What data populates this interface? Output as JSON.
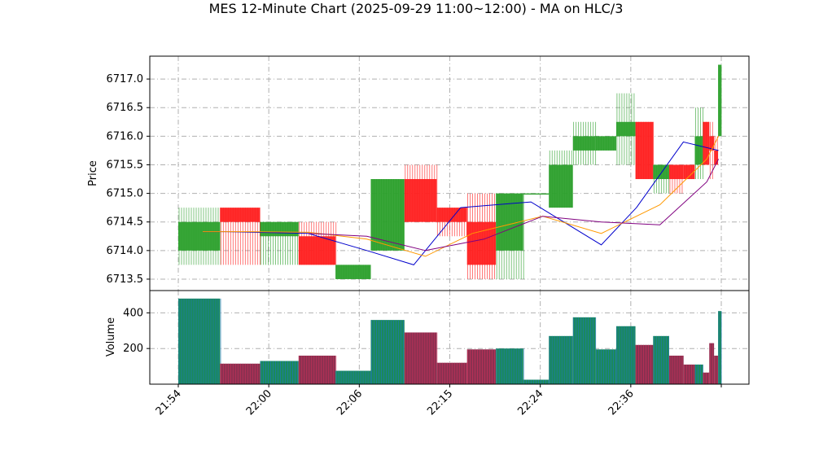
{
  "chart_data": {
    "type": "candlestick",
    "title": "MES 12-Minute Chart (2025-09-29 11:00~12:00) - MA on HLC/3",
    "price_panel": {
      "ylabel": "Price",
      "ylim": [
        6713.3,
        6717.4
      ],
      "yticks": [
        "6713.5",
        "6714.0",
        "6714.5",
        "6715.0",
        "6715.5",
        "6716.0",
        "6716.5",
        "6717.0"
      ],
      "grid": true
    },
    "volume_panel": {
      "ylabel": "Volume",
      "ylim": [
        0,
        525
      ],
      "yticks": [
        "200",
        "400"
      ],
      "grid": true
    },
    "xticks": [
      "21:54",
      "22:00",
      "22:06",
      "22:15",
      "22:24",
      "22:36",
      ""
    ],
    "bars": [
      {
        "open": 6714.0,
        "high": 6714.75,
        "low": 6713.75,
        "close": 6714.5,
        "volume": 480
      },
      {
        "open": 6714.75,
        "high": 6714.75,
        "low": 6713.75,
        "close": 6714.5,
        "volume": 115
      },
      {
        "open": 6714.25,
        "high": 6714.5,
        "low": 6713.75,
        "close": 6714.5,
        "volume": 130
      },
      {
        "open": 6714.25,
        "high": 6714.5,
        "low": 6713.75,
        "close": 6713.75,
        "volume": 160
      },
      {
        "open": 6713.5,
        "high": 6713.75,
        "low": 6713.5,
        "close": 6713.75,
        "volume": 75
      },
      {
        "open": 6714.0,
        "high": 6715.25,
        "low": 6714.0,
        "close": 6715.25,
        "volume": 360
      },
      {
        "open": 6715.25,
        "high": 6715.5,
        "low": 6714.5,
        "close": 6714.5,
        "volume": 290
      },
      {
        "open": 6714.75,
        "high": 6714.75,
        "low": 6714.25,
        "close": 6714.5,
        "volume": 120
      },
      {
        "open": 6714.5,
        "high": 6715.0,
        "low": 6713.5,
        "close": 6713.75,
        "volume": 195
      },
      {
        "open": 6714.0,
        "high": 6715.0,
        "low": 6713.5,
        "close": 6715.0,
        "volume": 200
      },
      {
        "open": 6715.0,
        "high": 6715.0,
        "low": 6715.0,
        "close": 6715.0,
        "volume": 25
      },
      {
        "open": 6714.75,
        "high": 6715.75,
        "low": 6714.75,
        "close": 6715.5,
        "volume": 270
      },
      {
        "open": 6715.75,
        "high": 6716.25,
        "low": 6715.5,
        "close": 6716.0,
        "volume": 375
      },
      {
        "open": 6715.75,
        "high": 6716.0,
        "low": 6715.75,
        "close": 6716.0,
        "volume": 195
      },
      {
        "open": 6716.0,
        "high": 6716.75,
        "low": 6715.5,
        "close": 6716.25,
        "volume": 325
      },
      {
        "open": 6716.25,
        "high": 6716.25,
        "low": 6715.25,
        "close": 6715.25,
        "volume": 220
      },
      {
        "open": 6715.25,
        "high": 6715.5,
        "low": 6715.0,
        "close": 6715.5,
        "volume": 270
      },
      {
        "open": 6715.5,
        "high": 6715.5,
        "low": 6715.0,
        "close": 6715.25,
        "volume": 160
      },
      {
        "open": 6715.5,
        "high": 6715.5,
        "low": 6715.25,
        "close": 6715.25,
        "volume": 110
      },
      {
        "open": 6715.5,
        "high": 6716.5,
        "low": 6715.25,
        "close": 6716.0,
        "volume": 110
      },
      {
        "open": 6716.25,
        "high": 6716.25,
        "low": 6715.5,
        "close": 6715.5,
        "volume": 65
      },
      {
        "open": 6716.0,
        "high": 6716.25,
        "low": 6715.25,
        "close": 6715.75,
        "volume": 230
      },
      {
        "open": 6715.75,
        "high": 6716.0,
        "low": 6715.5,
        "close": 6715.5,
        "volume": 160
      },
      {
        "open": 6716.0,
        "high": 6717.25,
        "low": 6716.0,
        "close": 6717.25,
        "volume": 410
      }
    ],
    "moving_averages": [
      {
        "color": "#0000cc",
        "x": [
          0.12,
          0.16,
          0.3,
          0.4,
          0.48,
          0.56,
          0.68,
          0.8,
          0.86,
          0.94,
          1.0
        ],
        "values": [
          6714.33,
          6714.33,
          6714.3,
          6714.0,
          6713.75,
          6714.75,
          6714.85,
          6714.1,
          6714.75,
          6715.9,
          6715.75
        ]
      },
      {
        "color": "#ff9900",
        "x": [
          0.12,
          0.2,
          0.3,
          0.4,
          0.5,
          0.58,
          0.7,
          0.8,
          0.9,
          0.98,
          1.0
        ],
        "values": [
          6714.33,
          6714.33,
          6714.32,
          6714.2,
          6713.9,
          6714.3,
          6714.6,
          6714.3,
          6714.8,
          6715.6,
          6716.0
        ]
      },
      {
        "color": "#800080",
        "x": [
          0.3,
          0.4,
          0.5,
          0.6,
          0.7,
          0.8,
          0.9,
          0.98,
          1.0
        ],
        "values": [
          6714.3,
          6714.25,
          6714.0,
          6714.2,
          6714.6,
          6714.5,
          6714.45,
          6715.2,
          6715.6
        ]
      }
    ],
    "colors": {
      "up": "#2ca02c",
      "down": "#ff2020",
      "vol_up_stripe": "#1f77b4",
      "vol_down_stripe": "#c8305a",
      "grid": "#b0b0b0"
    }
  }
}
